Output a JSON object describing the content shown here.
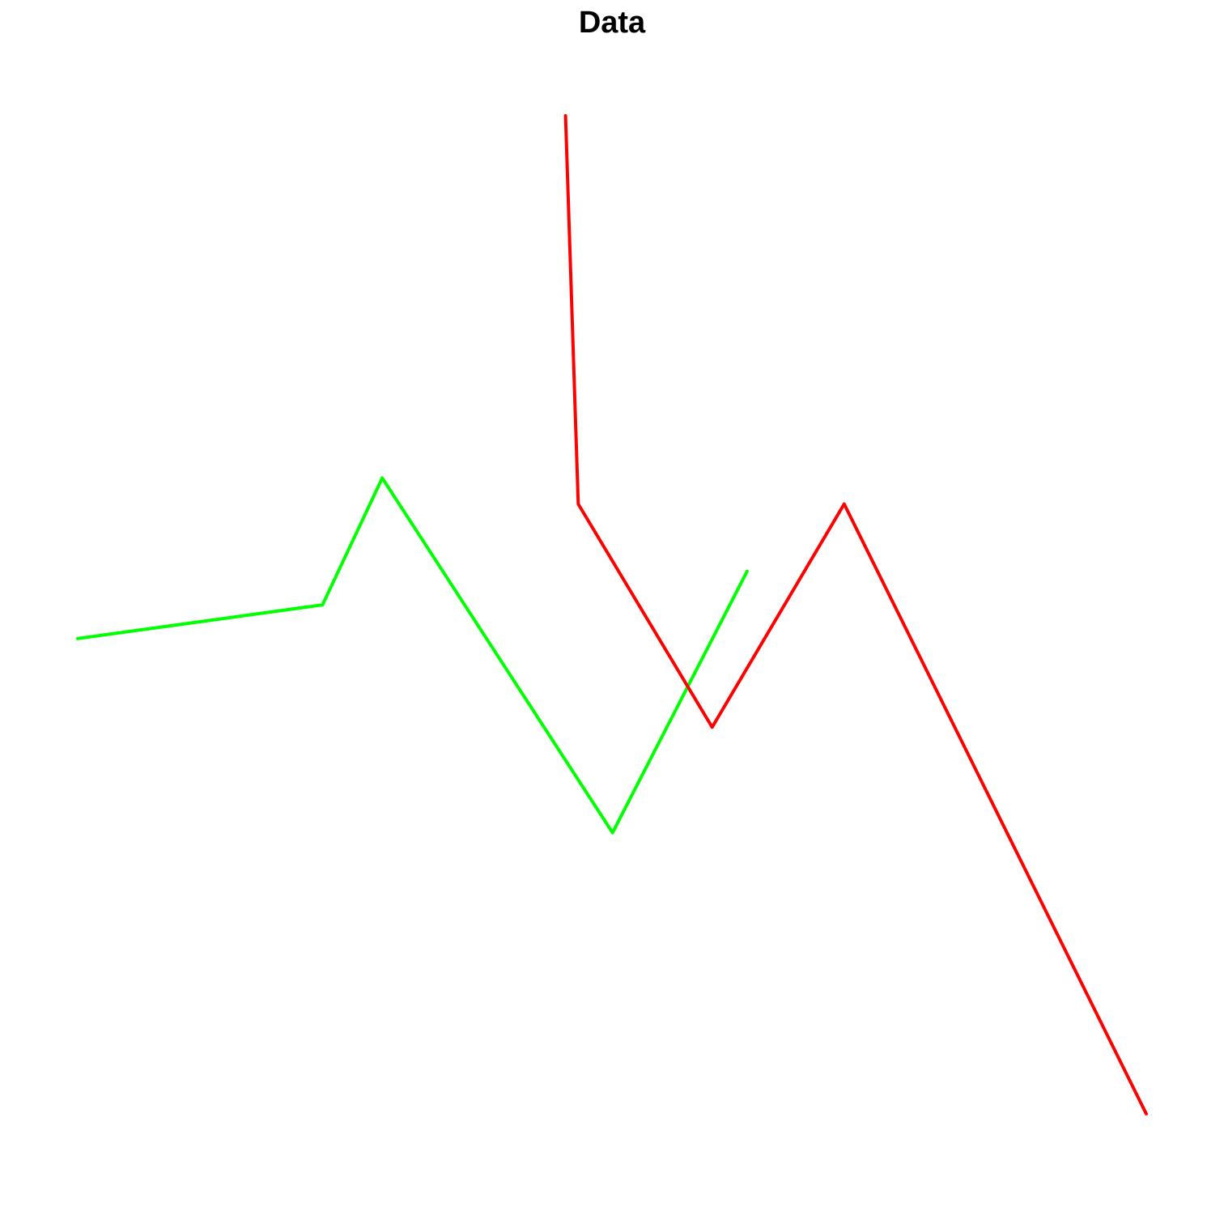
{
  "chart_data": {
    "type": "line",
    "title": "Data",
    "xlabel": "",
    "ylabel": "",
    "axes_visible": false,
    "grid": false,
    "legend": "none",
    "xlim": [
      1,
      18.6
    ],
    "ylim": [
      -1.1,
      5.6
    ],
    "series": [
      {
        "color": "#00FF00",
        "x": [
          1,
          5.06,
          6.05,
          9.87,
          12.1
        ],
        "y": [
          1.25,
          1.47,
          2.3,
          -0.02,
          1.69
        ]
      },
      {
        "color": "#FF0000",
        "x": [
          9.09,
          9.3,
          11.52,
          13.71,
          18.72
        ],
        "y": [
          4.67,
          2.13,
          0.67,
          2.13,
          -1.86
        ]
      }
    ]
  }
}
